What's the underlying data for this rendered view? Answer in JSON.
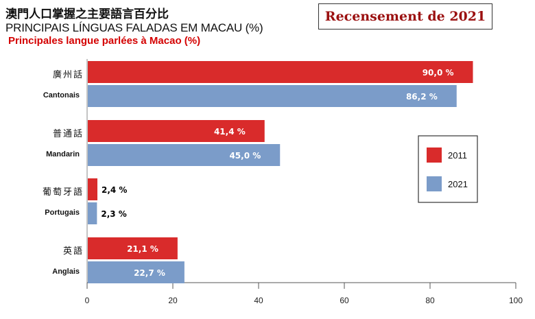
{
  "header": {
    "title_zh": "澳門人口掌握之主要語言百分比",
    "title_pt": "PRINCIPAIS LÍNGUAS FALADAS EM MACAU (%)",
    "subtitle_fr": "Principales langue parlées à Macao (%)",
    "badge": "Recensement de 2021"
  },
  "chart_data": {
    "type": "bar",
    "orientation": "horizontal",
    "categories": [
      {
        "zh": "廣州話",
        "fr": "Cantonais"
      },
      {
        "zh": "普通話",
        "fr": "Mandarin"
      },
      {
        "zh": "葡萄牙語",
        "fr": "Portugais"
      },
      {
        "zh": "英語",
        "fr": "Anglais"
      }
    ],
    "series": [
      {
        "name": "2011",
        "color": "#d92b2b",
        "values": [
          90.0,
          41.4,
          2.4,
          21.1
        ],
        "labels": [
          "90,0 %",
          "41,4 %",
          "2,4 %",
          "21,1 %"
        ]
      },
      {
        "name": "2021",
        "color": "#7b9cc9",
        "values": [
          86.2,
          45.0,
          2.3,
          22.7
        ],
        "labels": [
          "86,2 %",
          "45,0 %",
          "2,3 %",
          "22,7 %"
        ]
      }
    ],
    "xlim": [
      0,
      100
    ],
    "xticks": [
      0,
      20,
      40,
      60,
      80,
      100
    ],
    "legend_position": "right",
    "grid": false
  }
}
